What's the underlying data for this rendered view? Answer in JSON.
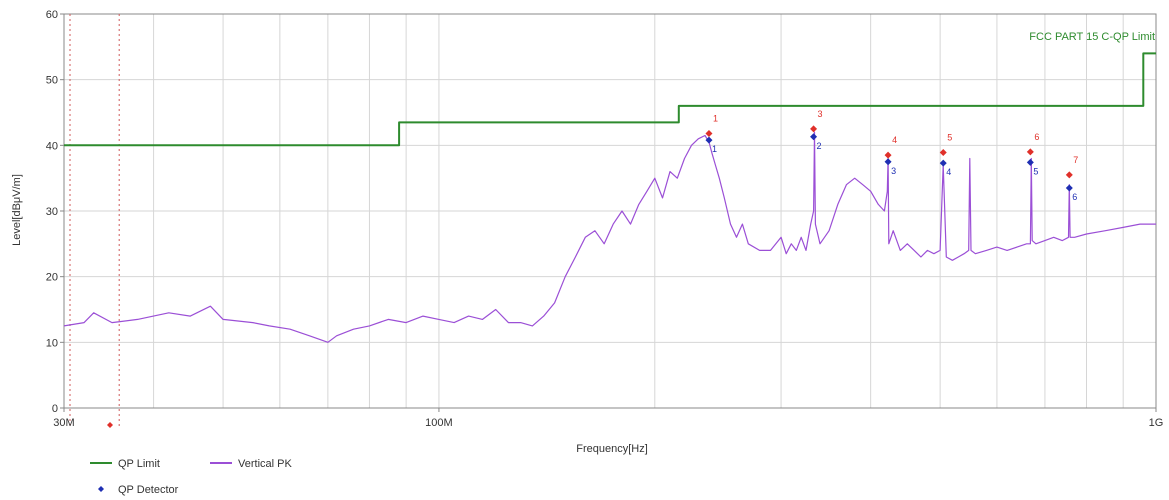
{
  "chart_data": {
    "type": "line",
    "xlabel": "Frequency[Hz]",
    "ylabel": "Level[dBμV/m]",
    "x_scale": "log",
    "xlim": [
      30000000,
      1000000000
    ],
    "ylim": [
      0,
      60
    ],
    "x_ticks": [
      {
        "value": 30000000,
        "label": "30M"
      },
      {
        "value": 100000000,
        "label": "100M"
      },
      {
        "value": 1000000000,
        "label": "1G"
      }
    ],
    "y_ticks": [
      {
        "value": 0,
        "label": "0"
      },
      {
        "value": 10,
        "label": "10"
      },
      {
        "value": 20,
        "label": "20"
      },
      {
        "value": 30,
        "label": "30"
      },
      {
        "value": 40,
        "label": "40"
      },
      {
        "value": 50,
        "label": "50"
      },
      {
        "value": 60,
        "label": "60"
      }
    ],
    "grid": true,
    "limit_annotation": "FCC PART 15 C-QP Limit",
    "colors": {
      "limit": "#2e8b2e",
      "pk": "#9b4fd6",
      "peak_marker": "#e0302a",
      "qp_marker": "#1f2fb3",
      "marker_label_red": "#e0302a",
      "marker_label_blue": "#1f2fb3",
      "dotted_line": "#d05a5a"
    },
    "series": [
      {
        "name": "QP Limit",
        "kind": "step",
        "x": [
          30000000,
          88000000,
          88000000,
          216000000,
          216000000,
          960000000,
          960000000,
          1000000000
        ],
        "y": [
          40,
          40,
          43.5,
          43.5,
          46,
          46,
          54,
          54
        ]
      },
      {
        "name": "Vertical PK",
        "kind": "trace",
        "x": [
          30000000,
          32000000,
          33000000,
          35000000,
          38000000,
          42000000,
          45000000,
          48000000,
          50000000,
          55000000,
          58000000,
          62000000,
          66000000,
          70000000,
          72000000,
          76000000,
          80000000,
          85000000,
          90000000,
          95000000,
          100000000,
          105000000,
          110000000,
          115000000,
          120000000,
          125000000,
          130000000,
          135000000,
          140000000,
          145000000,
          150000000,
          155000000,
          160000000,
          165000000,
          170000000,
          175000000,
          180000000,
          185000000,
          190000000,
          195000000,
          200000000,
          205000000,
          210000000,
          215000000,
          220000000,
          225000000,
          230000000,
          235000000,
          238000000,
          240000000,
          243000000,
          246000000,
          250000000,
          255000000,
          260000000,
          265000000,
          270000000,
          280000000,
          290000000,
          300000000,
          305000000,
          310000000,
          315000000,
          320000000,
          325000000,
          330000000,
          333000000,
          334000000,
          335000000,
          340000000,
          350000000,
          360000000,
          370000000,
          380000000,
          390000000,
          400000000,
          410000000,
          418000000,
          422000000,
          423000000,
          424000000,
          430000000,
          440000000,
          450000000,
          460000000,
          470000000,
          480000000,
          490000000,
          500000000,
          505000000,
          510000000,
          520000000,
          530000000,
          540000000,
          548000000,
          550000000,
          552000000,
          560000000,
          580000000,
          600000000,
          620000000,
          640000000,
          660000000,
          668000000,
          670000000,
          672000000,
          680000000,
          700000000,
          720000000,
          740000000,
          755000000,
          757000000,
          759000000,
          770000000,
          800000000,
          850000000,
          900000000,
          950000000,
          1000000000
        ],
        "y": [
          12.5,
          13,
          14.5,
          13,
          13.5,
          14.5,
          14,
          15.5,
          13.5,
          13,
          12.5,
          12,
          11,
          10,
          11,
          12,
          12.5,
          13.5,
          13,
          14,
          13.5,
          13,
          14,
          13.5,
          15,
          13,
          13,
          12.5,
          14,
          16,
          20,
          23,
          26,
          27,
          25,
          28,
          30,
          28,
          31,
          33,
          35,
          32,
          36,
          35,
          38,
          40,
          41,
          41.5,
          40.5,
          39,
          37,
          35,
          32,
          28,
          26,
          28,
          25,
          24,
          24,
          26,
          23.5,
          25,
          24,
          26,
          24,
          28,
          30,
          42,
          28,
          25,
          27,
          31,
          34,
          35,
          34,
          33,
          31,
          30,
          33,
          38,
          25,
          27,
          24,
          25,
          24,
          23,
          24,
          23.5,
          24,
          37,
          23,
          22.5,
          23,
          23.5,
          24,
          38,
          24,
          23.5,
          24,
          24.5,
          24,
          24.5,
          25,
          25,
          38,
          25.5,
          25,
          25.5,
          26,
          25.5,
          26,
          34,
          26,
          26,
          26.5,
          27,
          27.5,
          28,
          28
        ]
      },
      {
        "name": "QP Detector",
        "kind": "points",
        "x": [
          238000000,
          333000000,
          423000000,
          505000000,
          668000000,
          757000000
        ],
        "y": [
          40.8,
          41.3,
          37.5,
          37.3,
          37.4,
          33.5
        ]
      }
    ],
    "peak_points": {
      "x": [
        238000000,
        333000000,
        423000000,
        505000000,
        668000000,
        757000000
      ],
      "y": [
        41.8,
        42.5,
        38.5,
        38.9,
        39.0,
        35.5
      ]
    },
    "peak_labels": [
      "1",
      "3",
      "4",
      "5",
      "6",
      "7"
    ],
    "qp_labels": [
      "1",
      "2",
      "3",
      "4",
      "5",
      "6"
    ],
    "legend": [
      {
        "name": "QP Limit",
        "symbol": "line",
        "color": "#2e8b2e"
      },
      {
        "name": "Vertical PK",
        "symbol": "line",
        "color": "#9b4fd6"
      },
      {
        "name": "QP Detector",
        "symbol": "diamond",
        "color": "#1f2fb3"
      }
    ]
  }
}
